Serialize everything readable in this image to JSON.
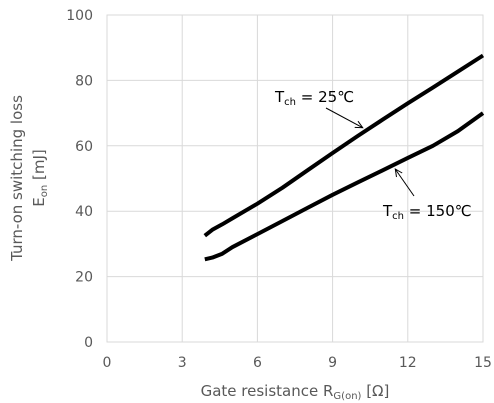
{
  "chart_data": {
    "type": "line",
    "xlabel": {
      "main": "Gate resistance  R",
      "sub": "G(on)",
      "unit": " [Ω]"
    },
    "ylabel": {
      "line1": "Turn-on switching loss",
      "main": "E",
      "sub": "on",
      "unit": " [mJ]"
    },
    "xlim": [
      0,
      15
    ],
    "ylim": [
      0,
      100
    ],
    "xticks": [
      0,
      3,
      6,
      9,
      12,
      15
    ],
    "yticks": [
      0,
      20,
      40,
      60,
      80,
      100
    ],
    "grid": true,
    "series": [
      {
        "name": "T_ch = 25℃",
        "x": [
          3.9,
          4.2,
          4.6,
          5,
          6,
          7,
          8,
          9,
          10,
          11,
          12,
          13,
          14,
          15
        ],
        "y": [
          32.5,
          34.3,
          36.0,
          37.8,
          42.3,
          47.2,
          52.5,
          57.8,
          63.0,
          68.0,
          73.0,
          77.8,
          82.7,
          87.6
        ]
      },
      {
        "name": "T_ch = 150℃",
        "x": [
          3.9,
          4.2,
          4.6,
          5,
          6,
          7,
          8,
          9,
          10,
          11,
          12,
          13,
          14,
          15
        ],
        "y": [
          25.3,
          25.8,
          27.0,
          29.0,
          33.0,
          37.0,
          41.0,
          45.0,
          48.8,
          52.5,
          56.3,
          60.0,
          64.5,
          70.0
        ]
      }
    ],
    "annotations": [
      {
        "id": "ann-25",
        "main": "T",
        "sub": "ch",
        "rest": " = 25℃",
        "series": 0,
        "point_x": 10.2
      },
      {
        "id": "ann-150",
        "main": "T",
        "sub": "ch",
        "rest": " = 150℃",
        "series": 1,
        "point_x": 11.5
      }
    ]
  }
}
